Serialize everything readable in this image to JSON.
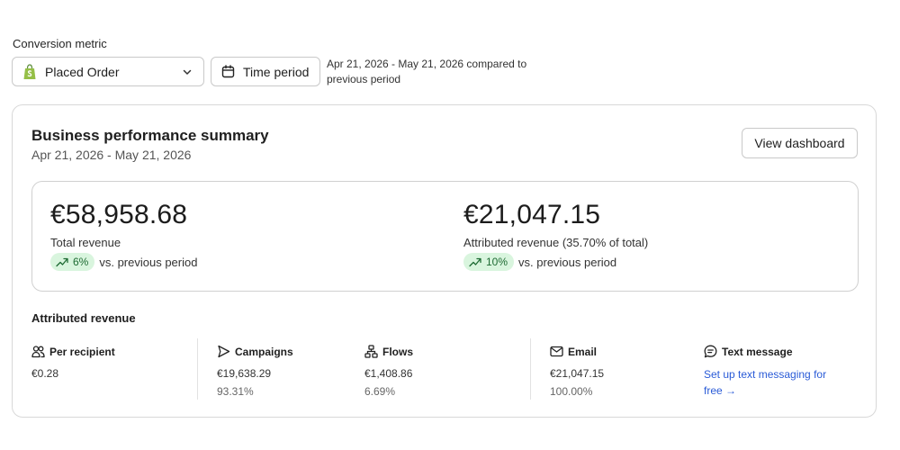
{
  "conversion_metric": {
    "label": "Conversion metric",
    "selected": "Placed Order",
    "icon": "shopify-bag-icon"
  },
  "time_period": {
    "button_label": "Time period",
    "range_note": "Apr 21, 2026 - May 21, 2026 compared to previous period"
  },
  "summary": {
    "title": "Business performance summary",
    "subtitle": "Apr 21, 2026 - May 21, 2026",
    "view_button": "View dashboard",
    "total": {
      "value": "€58,958.68",
      "label": "Total revenue",
      "change": "6%",
      "vs": "vs. previous period"
    },
    "attributed": {
      "value": "€21,047.15",
      "label": "Attributed revenue (35.70% of total)",
      "change": "10%",
      "vs": "vs. previous period"
    }
  },
  "attributed_revenue": {
    "title": "Attributed revenue",
    "columns": [
      {
        "icon": "people-icon",
        "label": "Per recipient",
        "value": "€0.28",
        "percent": ""
      },
      {
        "icon": "send-icon",
        "label": "Campaigns",
        "value": "€19,638.29",
        "percent": "93.31%"
      },
      {
        "icon": "flow-icon",
        "label": "Flows",
        "value": "€1,408.86",
        "percent": "6.69%"
      },
      {
        "icon": "email-icon",
        "label": "Email",
        "value": "€21,047.15",
        "percent": "100.00%"
      },
      {
        "icon": "message-icon",
        "label": "Text message",
        "link": "Set up text messaging for free →"
      }
    ]
  },
  "colors": {
    "positive_bg": "#d9f5de",
    "positive_text": "#1e6b33",
    "link": "#2a5bd7",
    "shopify_green": "#95bf47"
  }
}
